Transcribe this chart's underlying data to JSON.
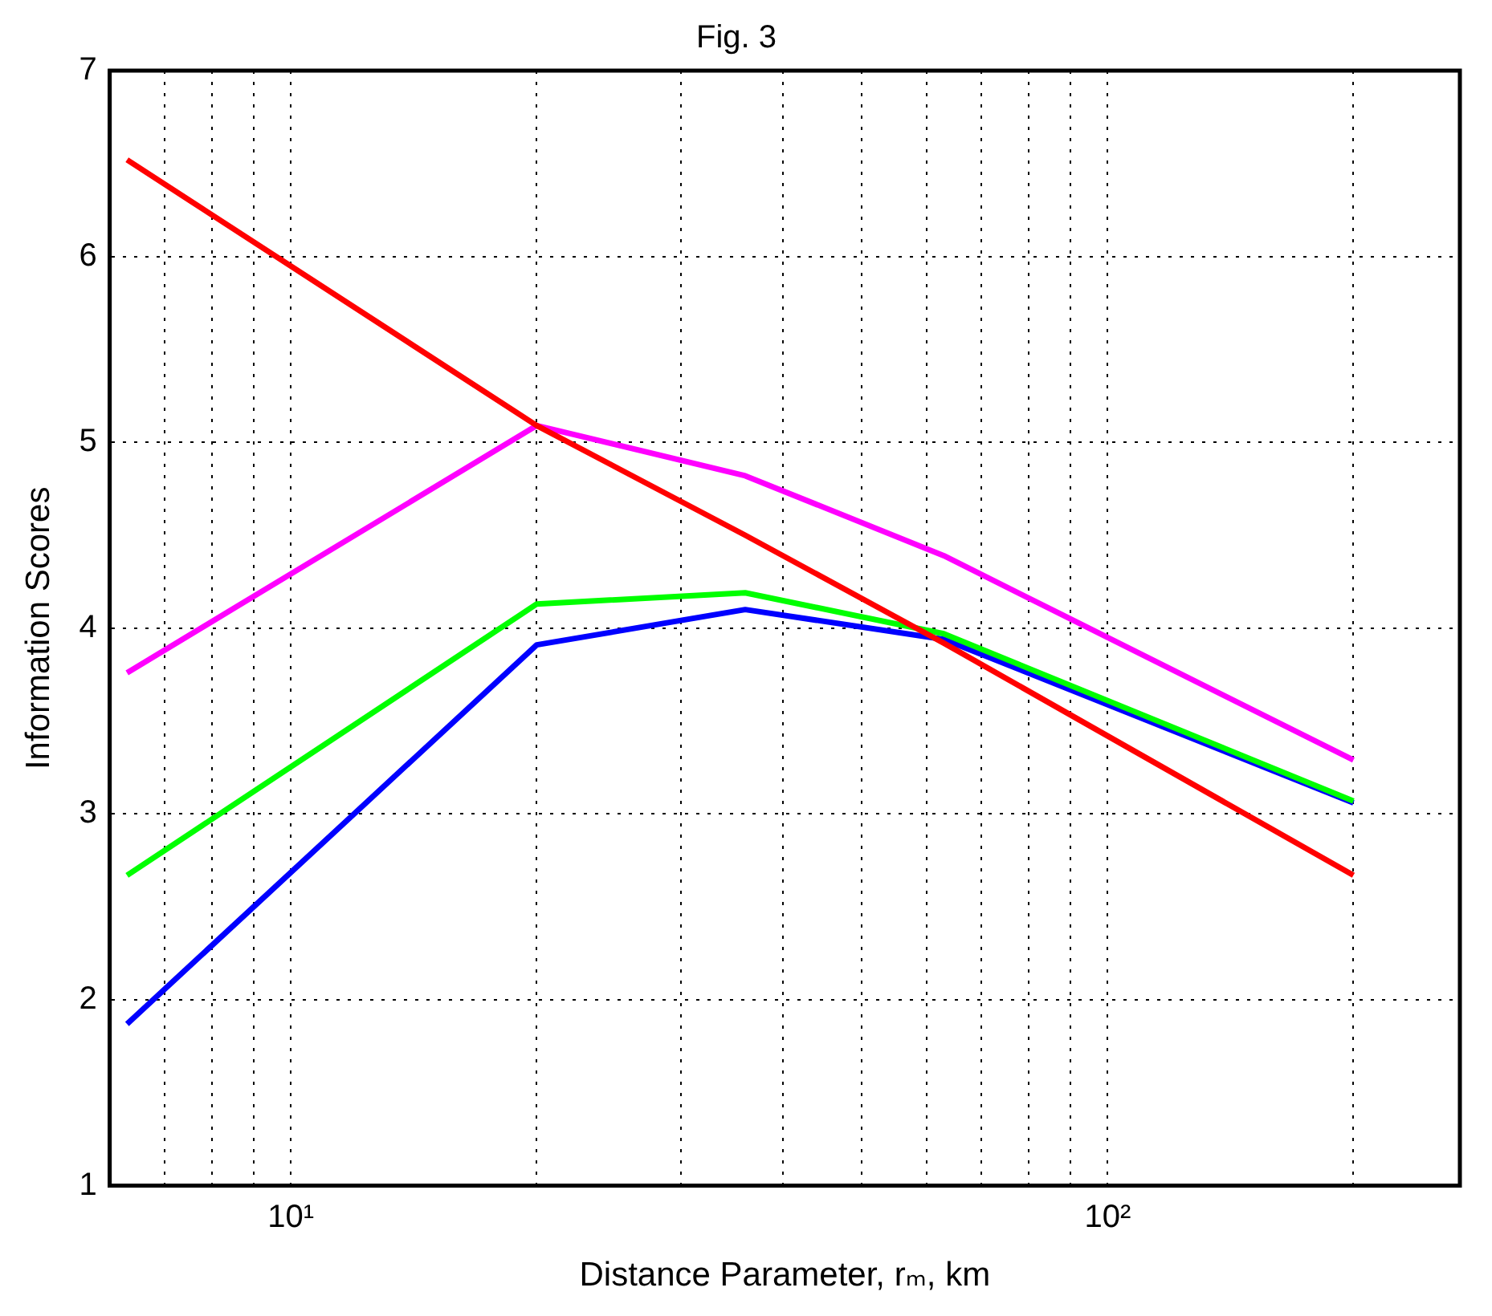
{
  "chart_data": {
    "type": "line",
    "title": "Fig. 3",
    "xlabel": "Distance Parameter, rₘ, km",
    "ylabel": "Information Scores",
    "x": [
      6.3,
      20,
      36,
      63,
      200
    ],
    "series": [
      {
        "color": "#0000ff",
        "values": [
          1.87,
          3.91,
          4.1,
          3.94,
          3.06
        ]
      },
      {
        "color": "#00ff00",
        "values": [
          2.67,
          4.13,
          4.19,
          3.97,
          3.07
        ]
      },
      {
        "color": "#ff00ff",
        "values": [
          3.76,
          5.09,
          4.82,
          4.39,
          3.29
        ]
      },
      {
        "color": "#ff0000",
        "values": [
          6.52,
          5.09,
          4.5,
          3.92,
          2.67
        ]
      }
    ],
    "log": "x",
    "xlim": [
      6,
      270
    ],
    "xticks": [
      {
        "value": 7,
        "label": null
      },
      {
        "value": 8,
        "label": null
      },
      {
        "value": 9,
        "label": null
      },
      {
        "value": 10,
        "label": "10¹"
      },
      {
        "value": 20,
        "label": null
      },
      {
        "value": 30,
        "label": null
      },
      {
        "value": 40,
        "label": null
      },
      {
        "value": 50,
        "label": null
      },
      {
        "value": 60,
        "label": null
      },
      {
        "value": 70,
        "label": null
      },
      {
        "value": 80,
        "label": null
      },
      {
        "value": 90,
        "label": null
      },
      {
        "value": 100,
        "label": "10²"
      },
      {
        "value": 200,
        "label": null
      }
    ],
    "ylim": [
      1,
      7
    ],
    "yticks": [
      1,
      2,
      3,
      4,
      5,
      6,
      7
    ],
    "grid": true,
    "legend": false,
    "marker": "none",
    "line_style": "solid"
  }
}
